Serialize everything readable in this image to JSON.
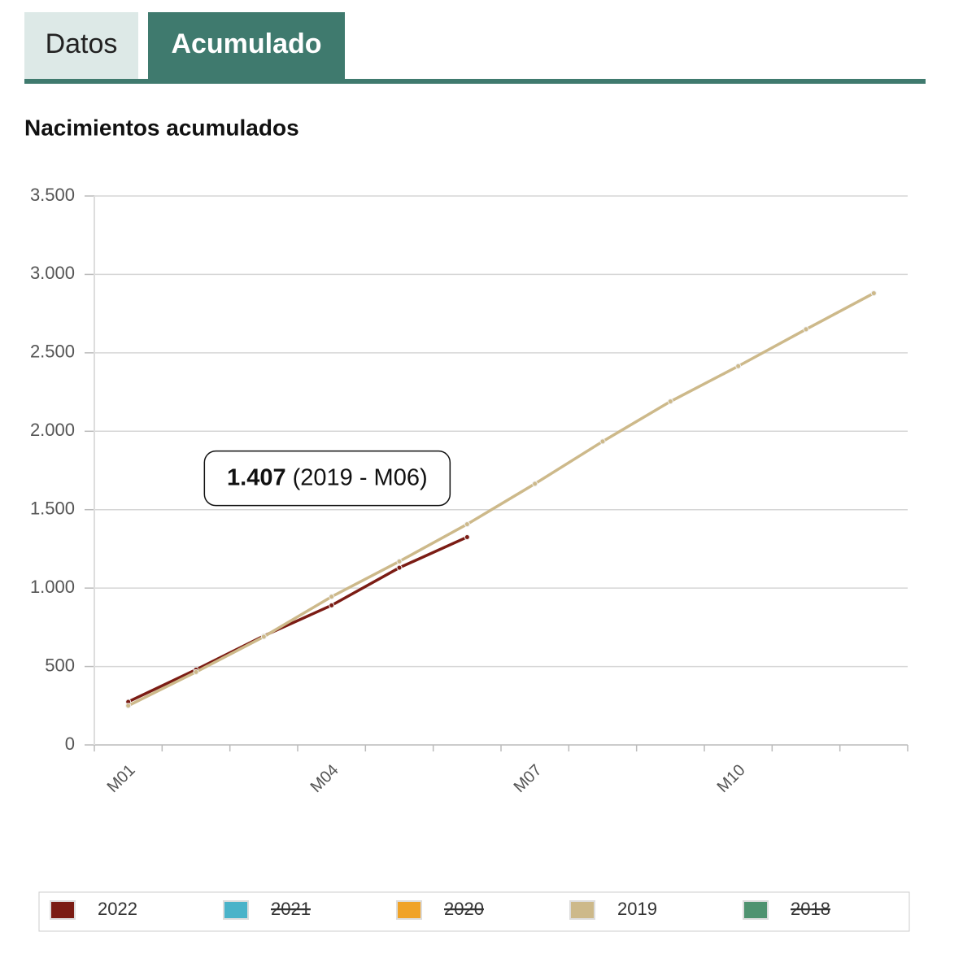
{
  "tabs": [
    "Datos",
    "Acumulado"
  ],
  "chart_data": {
    "type": "line",
    "title": "Nacimientos acumulados",
    "categories": [
      "M01",
      null,
      null,
      "M04",
      null,
      null,
      "M07",
      null,
      null,
      "M10",
      null,
      null
    ],
    "series": [
      {
        "name": "2022",
        "color": "#7b1c14",
        "visible": true,
        "values": [
          275,
          480,
          695,
          890,
          1130,
          1325,
          null,
          null,
          null,
          null,
          null,
          null
        ]
      },
      {
        "name": "2021",
        "color": "#4ab3c9",
        "visible": false,
        "values": [
          null,
          null,
          null,
          null,
          null,
          null,
          null,
          null,
          null,
          null,
          null,
          null
        ]
      },
      {
        "name": "2020",
        "color": "#f0a328",
        "visible": false,
        "values": [
          null,
          null,
          null,
          null,
          null,
          null,
          null,
          null,
          null,
          null,
          null,
          null
        ]
      },
      {
        "name": "2019",
        "color": "#cdb98a",
        "visible": true,
        "values": [
          250,
          465,
          690,
          945,
          1170,
          1407,
          1665,
          1935,
          2190,
          2415,
          2650,
          2880
        ]
      },
      {
        "name": "2018",
        "color": "#4f9370",
        "visible": false,
        "values": [
          null,
          null,
          null,
          null,
          null,
          null,
          null,
          null,
          null,
          null,
          null,
          null
        ]
      }
    ],
    "ylim": [
      0,
      3500
    ],
    "yticks": [
      0,
      500,
      {
        "value": 1000,
        "label": "1.000"
      },
      {
        "value": 1500,
        "label": "1.500"
      },
      {
        "value": 2000,
        "label": "2.000"
      },
      {
        "value": 2500,
        "label": "2.500"
      },
      {
        "value": 3000,
        "label": "3.000"
      },
      {
        "value": 3500,
        "label": "3.500"
      }
    ],
    "grid": true,
    "legend": "bottom",
    "tooltip": {
      "value": 1407,
      "value_label": "1.407",
      "detail": "(2019 - M06)"
    }
  }
}
